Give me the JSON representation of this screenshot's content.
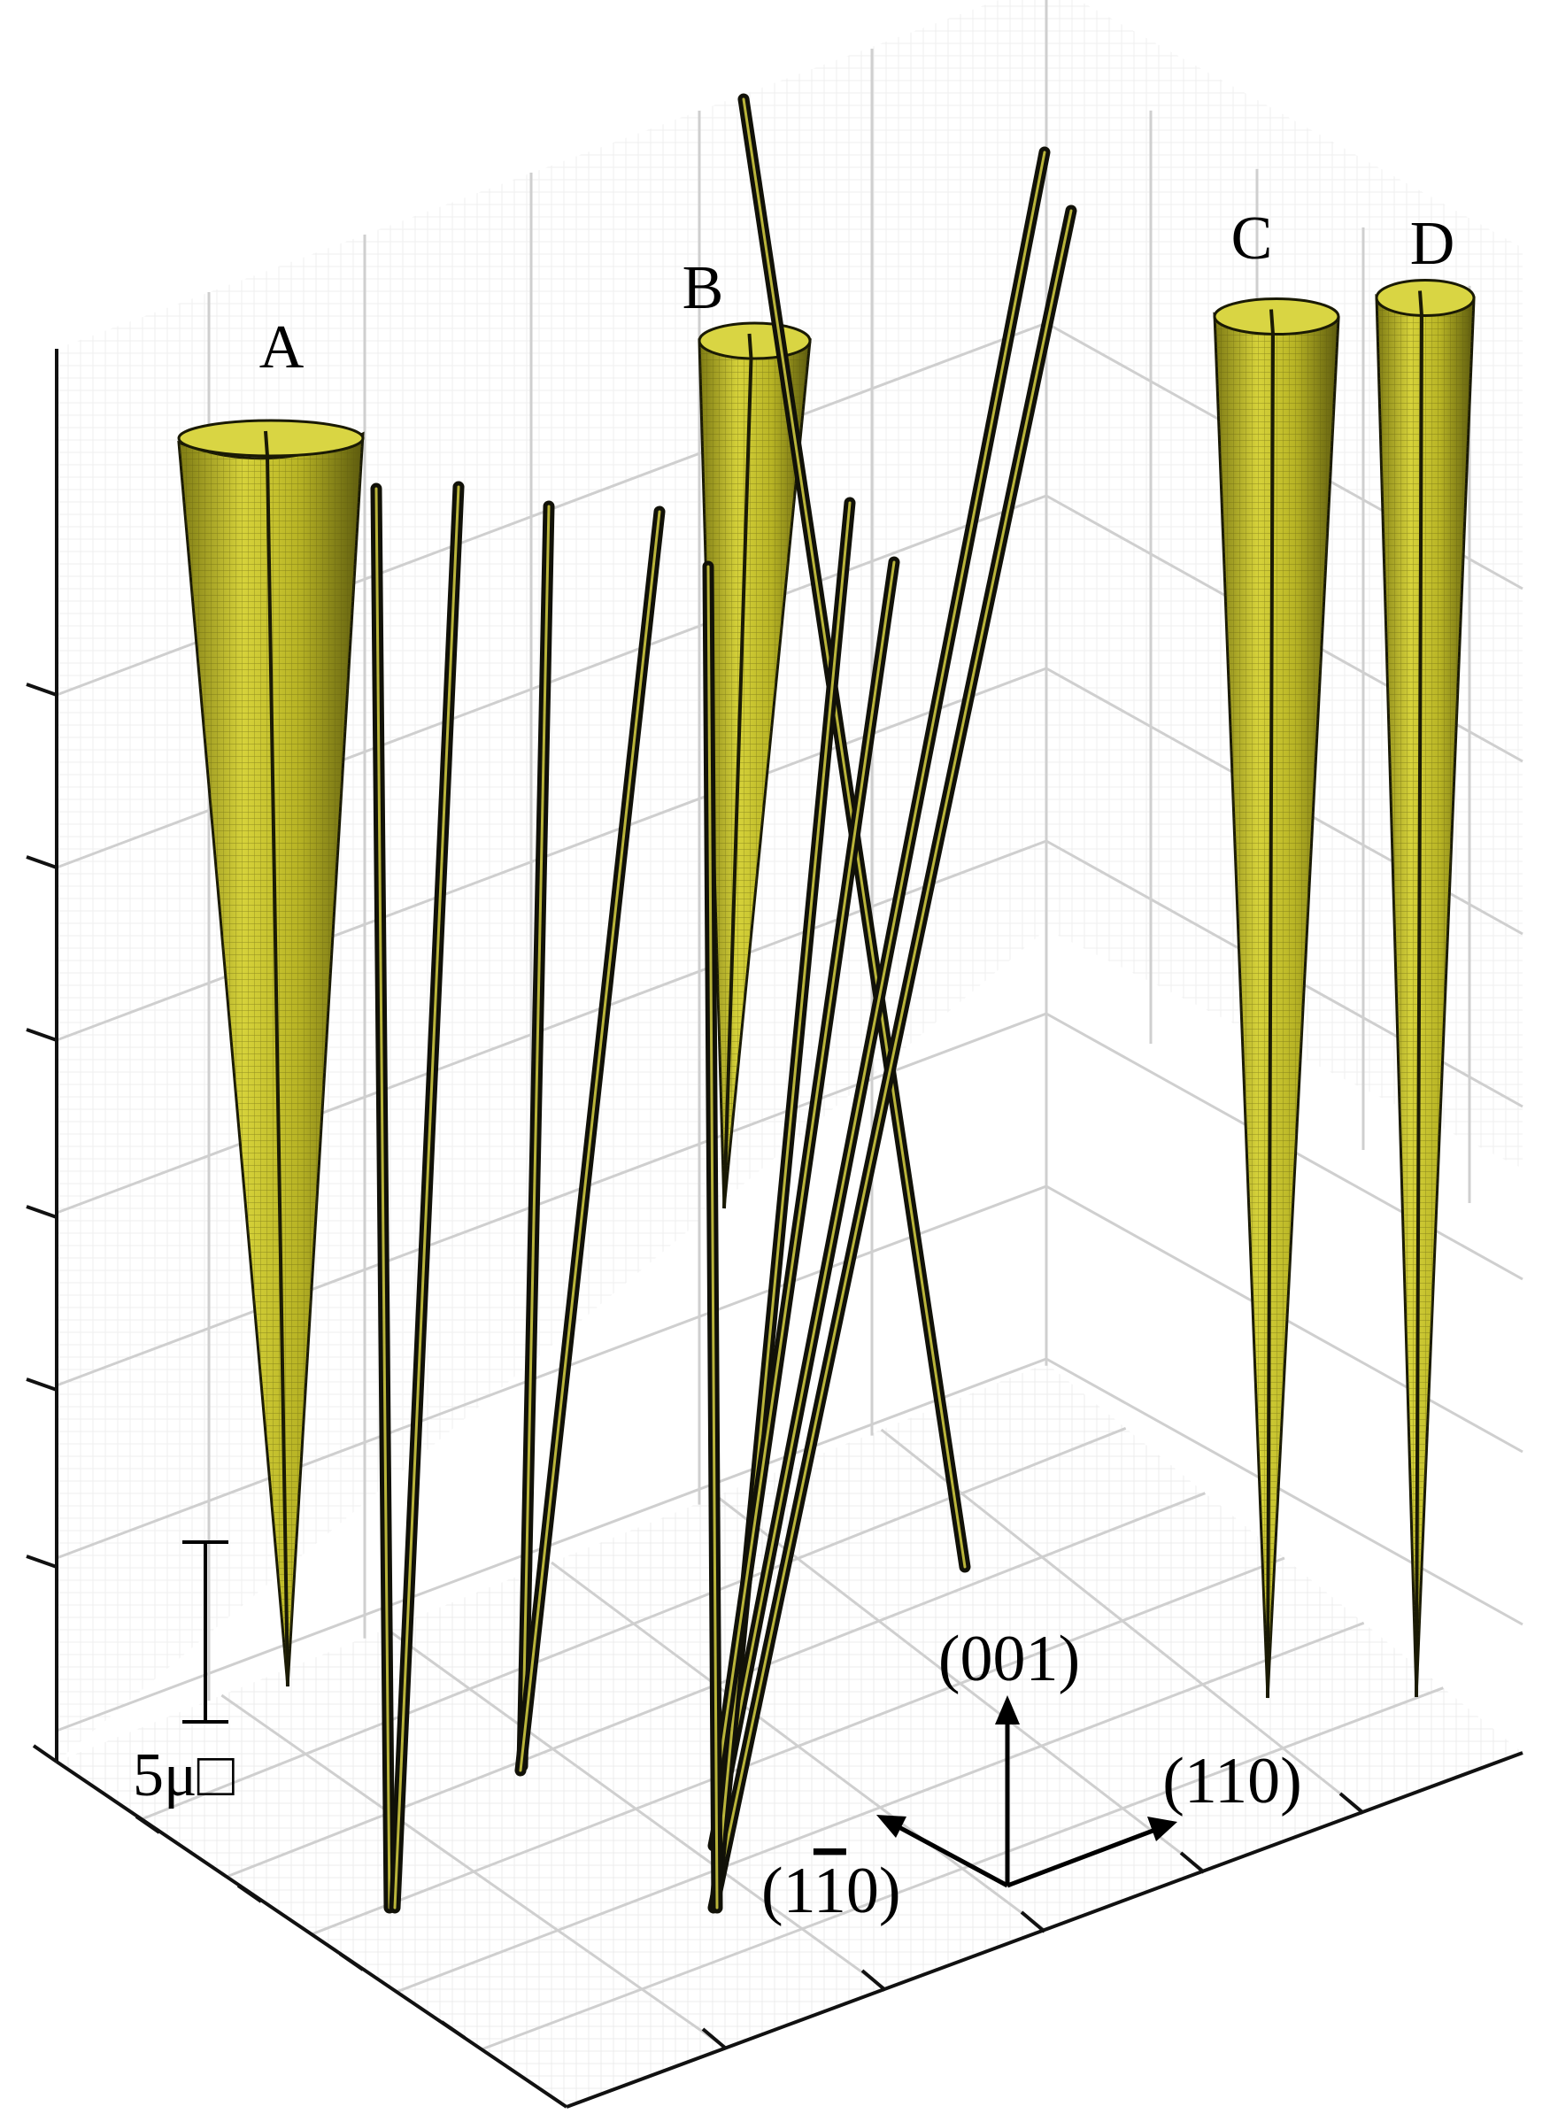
{
  "figure": {
    "labels": {
      "A": "A",
      "B": "B",
      "C": "C",
      "D": "D"
    },
    "scale_bar": {
      "text": "5μ□"
    },
    "axes_labels": {
      "z": "(001)",
      "x": "(110)",
      "y_prefix": "(1",
      "y_bar": "1",
      "y_suffix": "0)"
    },
    "colors": {
      "cone_fill": "#c9c52a",
      "cone_mesh": "#6b6810",
      "cone_edge": "#1a1a05",
      "rod": "#111108",
      "rod_core": "#b9b43a",
      "grid": "#cfcfcf",
      "axis": "#000000"
    }
  }
}
